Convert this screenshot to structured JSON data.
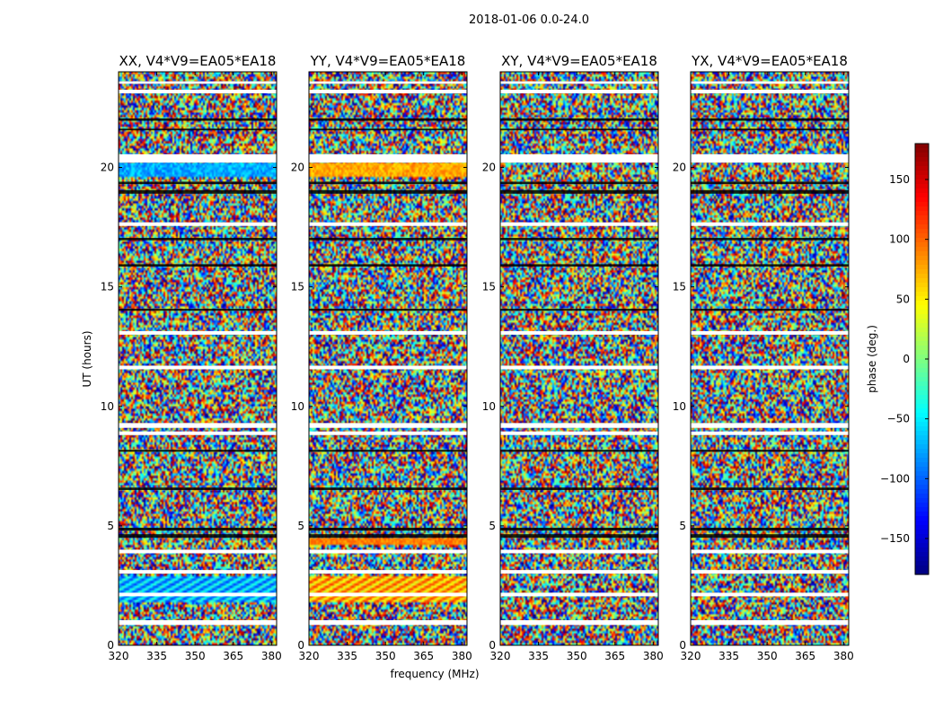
{
  "figure": {
    "suptitle": "2018-01-06 0.0-24.0",
    "xlabel": "frequency (MHz)",
    "ylabel": "UT (hours)",
    "colorbar_label": "phase (deg.)"
  },
  "chart_data": {
    "type": "heatmap",
    "colormap": "jet",
    "panels": [
      {
        "title": "XX, V4*V9=EA05*EA18",
        "style": "xx"
      },
      {
        "title": "YY, V4*V9=EA05*EA18",
        "style": "yy"
      },
      {
        "title": "XY, V4*V9=EA05*EA18",
        "style": "noise"
      },
      {
        "title": "YX, V4*V9=EA05*EA18",
        "style": "noise"
      }
    ],
    "xlim": [
      320,
      382
    ],
    "ylim": [
      0,
      24
    ],
    "xticks": [
      320,
      335,
      350,
      365,
      380
    ],
    "yticks": [
      0,
      5,
      10,
      15,
      20
    ],
    "clim": [
      -180,
      180
    ],
    "cbar_ticks": [
      -150,
      -100,
      -50,
      0,
      50,
      100,
      150
    ],
    "cbar_tick_labels": [
      "−150",
      "−100",
      "−50",
      "0",
      "50",
      "100",
      "150"
    ],
    "gap_bands_hours": [
      [
        0.85,
        1.05
      ],
      [
        2.05,
        2.2
      ],
      [
        3.0,
        3.15
      ],
      [
        3.85,
        4.0
      ],
      [
        9.1,
        9.3
      ],
      [
        8.8,
        8.95
      ],
      [
        11.55,
        11.7
      ],
      [
        13.0,
        13.15
      ],
      [
        17.55,
        17.7
      ],
      [
        20.2,
        20.55
      ],
      [
        23.1,
        23.25
      ],
      [
        23.5,
        23.6
      ]
    ],
    "dark_bands_hours": [
      [
        4.5,
        4.65
      ],
      [
        4.8,
        4.92
      ],
      [
        18.9,
        19.05
      ],
      [
        19.3,
        19.4
      ],
      [
        16.95,
        17.05
      ],
      [
        6.5,
        6.6
      ],
      [
        14.0,
        14.08
      ],
      [
        15.85,
        15.95
      ],
      [
        21.95,
        22.05
      ],
      [
        21.55,
        21.62
      ],
      [
        8.1,
        8.18
      ]
    ]
  }
}
